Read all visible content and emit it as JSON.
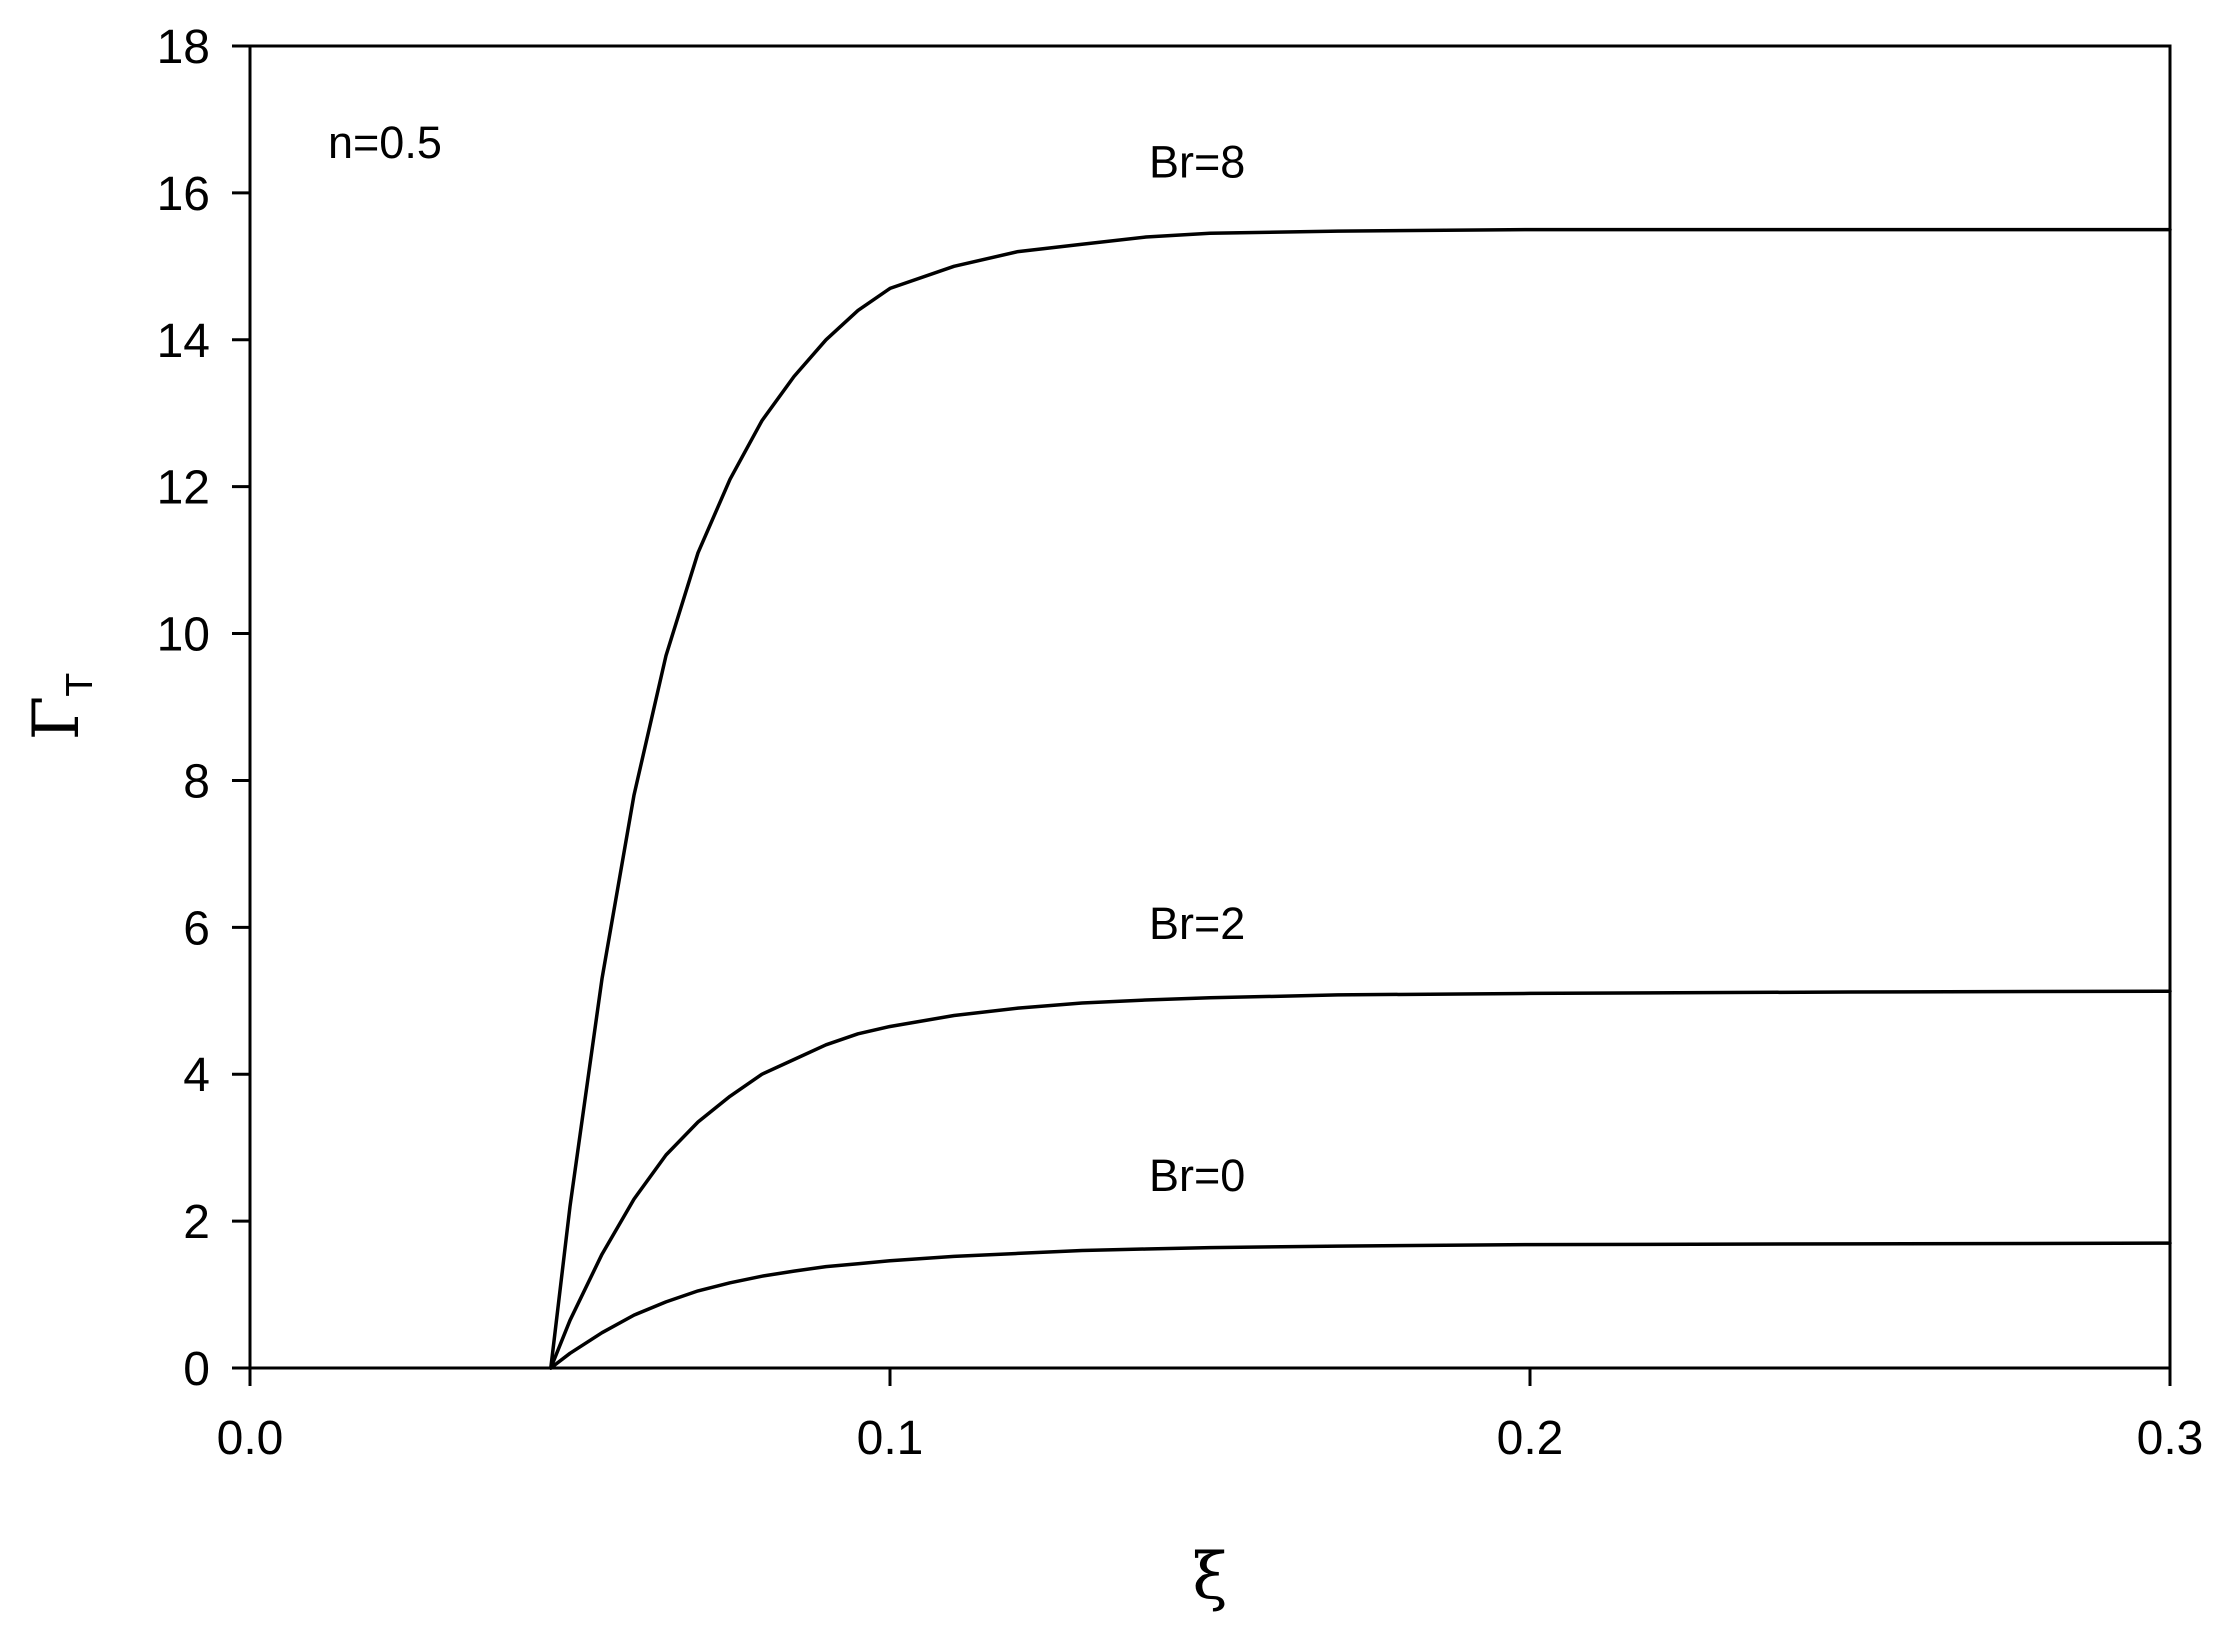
{
  "chart_data": {
    "type": "line",
    "xlabel": "ξ",
    "ylabel": "Γ",
    "ylabel_subscript": "T",
    "xlim": [
      0.0,
      0.3
    ],
    "ylim": [
      0,
      18
    ],
    "xticks": [
      "0.0",
      "0.1",
      "0.2",
      "0.3"
    ],
    "yticks": [
      "0",
      "2",
      "4",
      "6",
      "8",
      "10",
      "12",
      "14",
      "16",
      "18"
    ],
    "grid": false,
    "legend": "none",
    "annotation": "n=0.5",
    "series": [
      {
        "name": "Br=8",
        "x": [
          0.047,
          0.05,
          0.055,
          0.06,
          0.065,
          0.07,
          0.075,
          0.08,
          0.085,
          0.09,
          0.095,
          0.1,
          0.11,
          0.12,
          0.13,
          0.14,
          0.15,
          0.17,
          0.2,
          0.25,
          0.3
        ],
        "y": [
          0,
          2.2,
          5.3,
          7.8,
          9.7,
          11.1,
          12.1,
          12.9,
          13.5,
          14.0,
          14.4,
          14.7,
          15.0,
          15.2,
          15.3,
          15.4,
          15.45,
          15.48,
          15.5,
          15.5,
          15.5
        ]
      },
      {
        "name": "Br=2",
        "x": [
          0.047,
          0.05,
          0.055,
          0.06,
          0.065,
          0.07,
          0.075,
          0.08,
          0.085,
          0.09,
          0.095,
          0.1,
          0.11,
          0.12,
          0.13,
          0.14,
          0.15,
          0.17,
          0.2,
          0.25,
          0.3
        ],
        "y": [
          0,
          0.65,
          1.55,
          2.3,
          2.9,
          3.35,
          3.7,
          4.0,
          4.2,
          4.4,
          4.55,
          4.65,
          4.8,
          4.9,
          4.97,
          5.01,
          5.04,
          5.08,
          5.1,
          5.12,
          5.13
        ]
      },
      {
        "name": "Br=0",
        "x": [
          0.047,
          0.05,
          0.055,
          0.06,
          0.065,
          0.07,
          0.075,
          0.08,
          0.085,
          0.09,
          0.095,
          0.1,
          0.11,
          0.12,
          0.13,
          0.14,
          0.15,
          0.17,
          0.2,
          0.25,
          0.3
        ],
        "y": [
          0,
          0.2,
          0.48,
          0.72,
          0.9,
          1.05,
          1.16,
          1.25,
          1.32,
          1.38,
          1.42,
          1.46,
          1.52,
          1.56,
          1.6,
          1.62,
          1.64,
          1.66,
          1.68,
          1.69,
          1.7
        ]
      }
    ]
  }
}
